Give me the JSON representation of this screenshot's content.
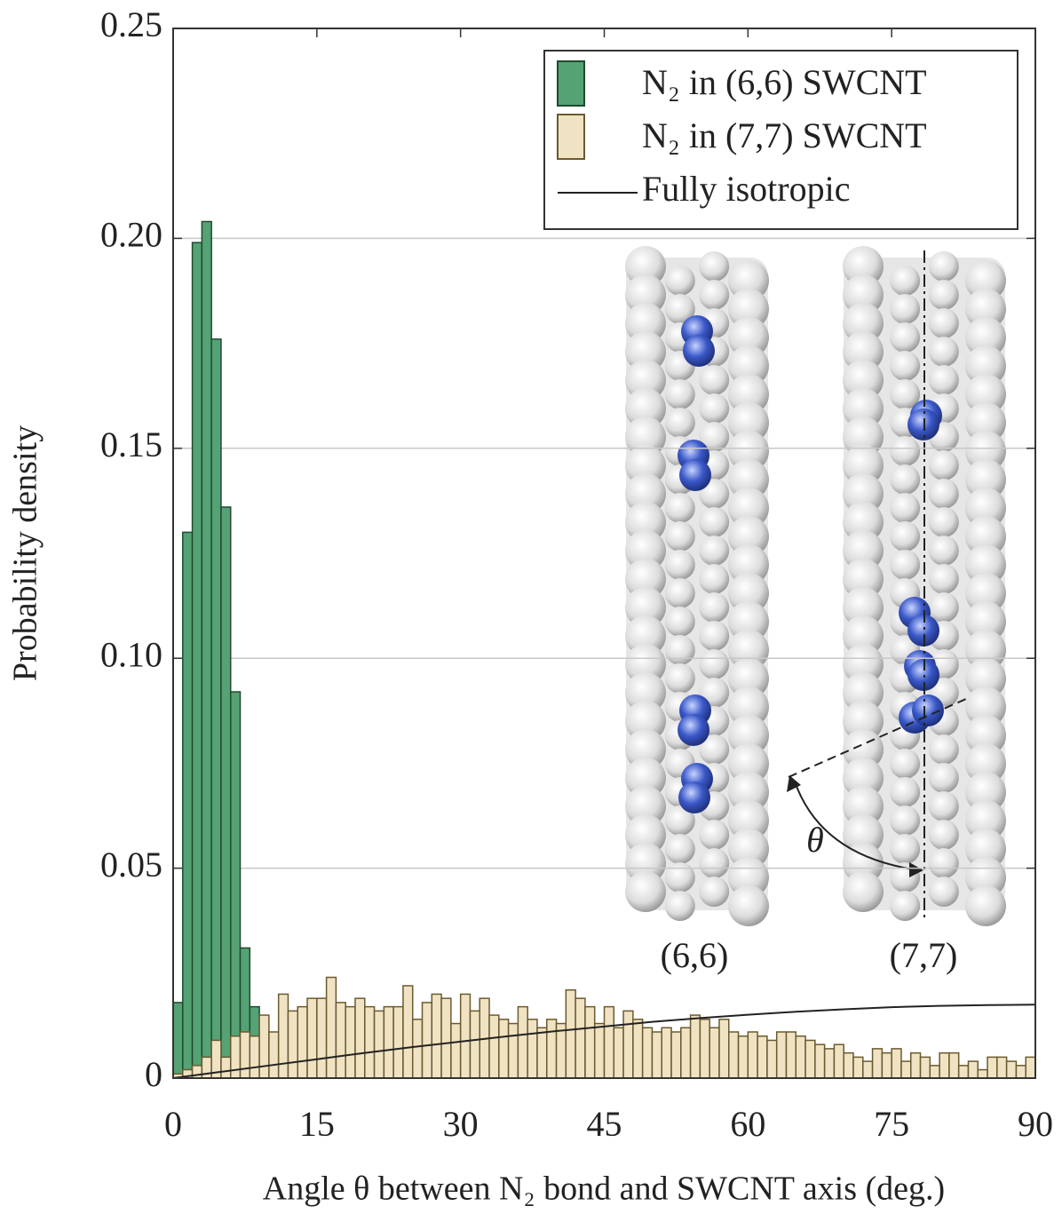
{
  "chart_data": {
    "type": "histogram",
    "xlabel": "Angle θ between N₂ bond and SWCNT axis (deg.)",
    "ylabel": "Probability density",
    "bins": [
      0,
      1,
      2,
      3,
      4,
      5,
      6,
      7,
      8,
      9,
      10,
      11,
      12,
      13,
      14,
      15,
      16,
      17,
      18,
      19,
      20,
      21,
      22,
      23,
      24,
      25,
      26,
      27,
      28,
      29,
      30,
      31,
      32,
      33,
      34,
      35,
      36,
      37,
      38,
      39,
      40,
      41,
      42,
      43,
      44,
      45,
      46,
      47,
      48,
      49,
      50,
      51,
      52,
      53,
      54,
      55,
      56,
      57,
      58,
      59,
      60,
      61,
      62,
      63,
      64,
      65,
      66,
      67,
      68,
      69,
      70,
      71,
      72,
      73,
      74,
      75,
      76,
      77,
      78,
      79,
      80,
      81,
      82,
      83,
      84,
      85,
      86,
      87,
      88,
      89,
      90
    ],
    "series": [
      {
        "name": "N₂ in (6,6) SWCNT",
        "color": "#55a274",
        "edgecolor": "#1f4a31",
        "values": [
          0.018,
          0.13,
          0.199,
          0.204,
          0.176,
          0.136,
          0.092,
          0.031,
          0.017,
          0,
          0,
          0,
          0,
          0,
          0,
          0,
          0,
          0,
          0,
          0,
          0,
          0,
          0,
          0,
          0,
          0,
          0,
          0,
          0,
          0,
          0,
          0,
          0,
          0,
          0,
          0,
          0,
          0,
          0,
          0,
          0,
          0,
          0,
          0,
          0,
          0,
          0,
          0,
          0,
          0,
          0,
          0,
          0,
          0,
          0,
          0,
          0,
          0,
          0,
          0,
          0,
          0,
          0,
          0,
          0,
          0,
          0,
          0,
          0,
          0,
          0,
          0,
          0,
          0,
          0,
          0,
          0,
          0,
          0,
          0,
          0,
          0,
          0,
          0,
          0,
          0,
          0,
          0,
          0,
          0
        ]
      },
      {
        "name": "N₂ in (7,7) SWCNT",
        "color": "#efe3c3",
        "edgecolor": "#6b5a2e",
        "values": [
          0.001,
          0.002,
          0.003,
          0.005,
          0.009,
          0.005,
          0.01,
          0.011,
          0.01,
          0.015,
          0.011,
          0.02,
          0.016,
          0.017,
          0.019,
          0.019,
          0.024,
          0.018,
          0.017,
          0.019,
          0.017,
          0.016,
          0.017,
          0.017,
          0.022,
          0.014,
          0.018,
          0.02,
          0.019,
          0.013,
          0.02,
          0.016,
          0.019,
          0.015,
          0.014,
          0.013,
          0.017,
          0.014,
          0.012,
          0.014,
          0.013,
          0.021,
          0.019,
          0.017,
          0.013,
          0.017,
          0.012,
          0.016,
          0.014,
          0.012,
          0.011,
          0.012,
          0.011,
          0.012,
          0.015,
          0.014,
          0.012,
          0.014,
          0.011,
          0.01,
          0.011,
          0.01,
          0.009,
          0.011,
          0.011,
          0.01,
          0.009,
          0.008,
          0.007,
          0.008,
          0.006,
          0.005,
          0.004,
          0.007,
          0.006,
          0.007,
          0.004,
          0.006,
          0.005,
          0.003,
          0.006,
          0.006,
          0.003,
          0.004,
          0.002,
          0.005,
          0.005,
          0.004,
          0.003,
          0.005
        ]
      },
      {
        "name": "Fully isotropic",
        "type": "line",
        "color": "#222222",
        "x": [
          0,
          5,
          10,
          15,
          20,
          25,
          30,
          35,
          40,
          45,
          50,
          55,
          60,
          65,
          70,
          75,
          80,
          85,
          90
        ],
        "values": [
          0,
          0.0015,
          0.003,
          0.0045,
          0.006,
          0.0074,
          0.0087,
          0.01,
          0.0112,
          0.0123,
          0.0134,
          0.0143,
          0.0151,
          0.0158,
          0.0164,
          0.0169,
          0.0172,
          0.0174,
          0.0175
        ]
      }
    ],
    "xlim": [
      0,
      90
    ],
    "xticks": [
      0,
      15,
      30,
      45,
      60,
      75,
      90
    ],
    "ylim": [
      0,
      0.25
    ],
    "yticks": [
      0,
      0.05,
      {
        "value": 0.1,
        "label": "0.10"
      },
      0.15,
      {
        "value": 0.2,
        "label": "0.20"
      },
      0.25
    ],
    "grid": true,
    "legend": "upper right",
    "inset_labels": [
      "(6,6)",
      "(7,7)",
      "θ"
    ]
  }
}
